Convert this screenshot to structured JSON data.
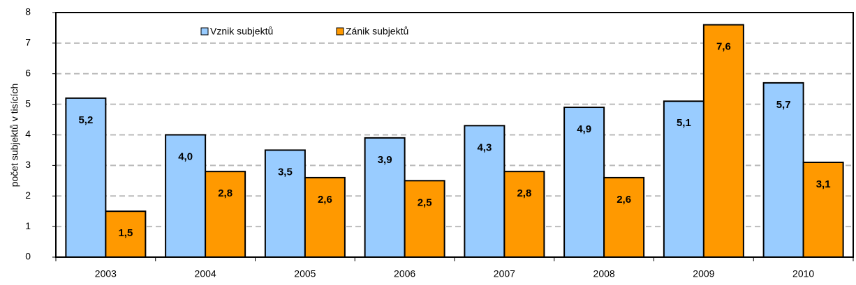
{
  "chart_data": {
    "type": "bar",
    "y_label": "počet subjektů v tisících",
    "categories": [
      "2003",
      "2004",
      "2005",
      "2006",
      "2007",
      "2008",
      "2009",
      "2010"
    ],
    "series": [
      {
        "name": "Vznik subjektů",
        "color": "#99ccff",
        "values": [
          5.2,
          4.0,
          3.5,
          3.9,
          4.3,
          4.9,
          5.1,
          5.7
        ],
        "value_labels": [
          "5,2",
          "4,0",
          "3,5",
          "3,9",
          "4,3",
          "4,9",
          "5,1",
          "5,7"
        ]
      },
      {
        "name": "Zánik subjektů",
        "color": "#ff9900",
        "values": [
          1.5,
          2.8,
          2.6,
          2.5,
          2.8,
          2.6,
          7.6,
          3.1
        ],
        "value_labels": [
          "1,5",
          "2,8",
          "2,6",
          "2,5",
          "2,8",
          "2,6",
          "7,6",
          "3,1"
        ]
      }
    ],
    "ylim": [
      0,
      8
    ],
    "yticks": [
      0,
      1,
      2,
      3,
      4,
      5,
      6,
      7,
      8
    ],
    "grid": true,
    "legend": "top"
  }
}
